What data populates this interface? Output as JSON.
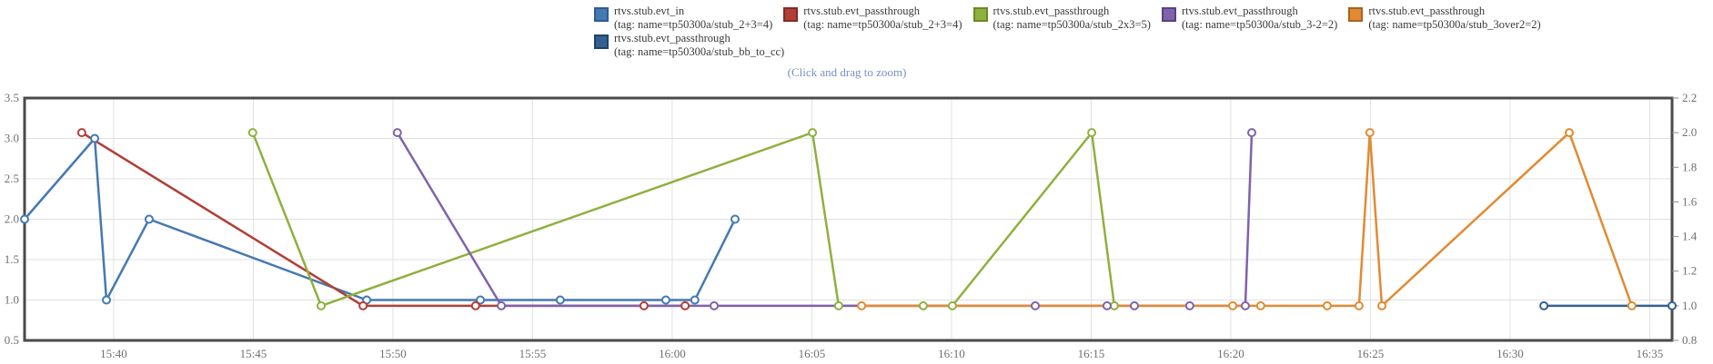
{
  "hint": "(Click and drag to zoom)",
  "chart_data": {
    "type": "line",
    "title": "",
    "grid": true,
    "legend_position": "top",
    "x_axis": {
      "domain_minutes_after_1500": [
        36.81,
        95.8
      ],
      "ticks": [
        {
          "t": 40,
          "label": "15:40"
        },
        {
          "t": 45,
          "label": "15:45"
        },
        {
          "t": 50,
          "label": "15:50"
        },
        {
          "t": 55,
          "label": "15:55"
        },
        {
          "t": 60,
          "label": "16:00"
        },
        {
          "t": 65,
          "label": "16:05"
        },
        {
          "t": 70,
          "label": "16:10"
        },
        {
          "t": 75,
          "label": "16:15"
        },
        {
          "t": 80,
          "label": "16:20"
        },
        {
          "t": 85,
          "label": "16:25"
        },
        {
          "t": 90,
          "label": "16:30"
        },
        {
          "t": 95,
          "label": "16:35"
        }
      ]
    },
    "y_left": {
      "range": [
        0.5,
        3.5
      ],
      "ticks": [
        {
          "v": 3.5,
          "label": "3.5"
        },
        {
          "v": 3.0,
          "label": "3.0"
        },
        {
          "v": 2.5,
          "label": "2.5"
        },
        {
          "v": 2.0,
          "label": "2.0"
        },
        {
          "v": 1.5,
          "label": "1.5"
        },
        {
          "v": 1.0,
          "label": "1.0"
        },
        {
          "v": 0.5,
          "label": "0.5"
        }
      ]
    },
    "y_right": {
      "range": [
        0.8,
        2.2
      ],
      "ticks": [
        {
          "v": 2.2,
          "label": "2.2"
        },
        {
          "v": 2.0,
          "label": "2.0"
        },
        {
          "v": 1.8,
          "label": "1.8"
        },
        {
          "v": 1.6,
          "label": "1.6"
        },
        {
          "v": 1.4,
          "label": "1.4"
        },
        {
          "v": 1.2,
          "label": "1.2"
        },
        {
          "v": 1.0,
          "label": "1.0"
        },
        {
          "v": 0.8,
          "label": "0.8"
        }
      ]
    },
    "series": [
      {
        "name": "rtvs.stub.evt_in",
        "tag": "(tag: name=tp50300a/stub_2+3=4)",
        "axis": "left",
        "color": "#4579b2",
        "swatch_border": "#2f5b93",
        "legend_row": 1,
        "points": [
          [
            36.81,
            2
          ],
          [
            39.32,
            3
          ],
          [
            39.74,
            1
          ],
          [
            41.27,
            2
          ],
          [
            49.06,
            1
          ],
          [
            53.13,
            1
          ],
          [
            55.99,
            1
          ],
          [
            59.77,
            1
          ],
          [
            60.81,
            1
          ],
          [
            62.25,
            2
          ]
        ]
      },
      {
        "name": "rtvs.stub.evt_passthrough",
        "tag": "(tag: name=tp50300a/stub_2+3=4)",
        "axis": "right",
        "color": "#b13f38",
        "swatch_border": "#822a25",
        "legend_row": 1,
        "points": [
          [
            38.86,
            2
          ],
          [
            48.93,
            1
          ],
          [
            52.96,
            1
          ],
          [
            58.99,
            1
          ],
          [
            60.46,
            1
          ]
        ]
      },
      {
        "name": "rtvs.stub.evt_passthrough",
        "tag": "(tag: name=tp50300a/stub_2x3=5)",
        "axis": "right",
        "color": "#8fb03f",
        "swatch_border": "#6b8824",
        "legend_row": 1,
        "points": [
          [
            44.98,
            2
          ],
          [
            47.43,
            1
          ],
          [
            65.02,
            2
          ],
          [
            65.96,
            1
          ],
          [
            68.99,
            1
          ],
          [
            70.03,
            1
          ],
          [
            75.02,
            2
          ],
          [
            75.83,
            1
          ]
        ]
      },
      {
        "name": "rtvs.stub.evt_passthrough",
        "tag": "(tag: name=tp50300a/stub_3-2=2)",
        "axis": "right",
        "color": "#7e63ab",
        "swatch_border": "#594180",
        "legend_row": 1,
        "points": [
          [
            50.16,
            2
          ],
          [
            53.88,
            1
          ],
          [
            61.5,
            1
          ],
          [
            73.0,
            1
          ],
          [
            75.57,
            1
          ],
          [
            76.55,
            1
          ],
          [
            78.53,
            1
          ],
          [
            80.52,
            1
          ],
          [
            80.75,
            2
          ]
        ]
      },
      {
        "name": "rtvs.stub.evt_passthrough",
        "tag": "(tag: name=tp50300a/stub_3over2=2)",
        "axis": "right",
        "color": "#e08b33",
        "swatch_border": "#a8611b",
        "legend_row": 1,
        "points": [
          [
            66.78,
            1
          ],
          [
            80.07,
            1
          ],
          [
            81.07,
            1
          ],
          [
            83.45,
            1
          ],
          [
            84.59,
            1
          ],
          [
            84.98,
            2
          ],
          [
            85.41,
            1
          ],
          [
            92.12,
            2
          ],
          [
            94.36,
            1
          ]
        ]
      },
      {
        "name": "rtvs.stub.evt_passthrough",
        "tag": "(tag: name=tp50300a/stub_bb_to_cc)",
        "axis": "right",
        "color": "#336090",
        "swatch_border": "#1d4368",
        "legend_row": 2,
        "points": [
          [
            91.21,
            1
          ],
          [
            95.8,
            1
          ]
        ]
      }
    ],
    "style": {
      "gridline_color": "#e0e0e0",
      "border_color": "#4a4a4a",
      "axis_label_color": "#6f6f6f",
      "hint_color": "#7a8fbf",
      "marker": "open-circle"
    }
  }
}
